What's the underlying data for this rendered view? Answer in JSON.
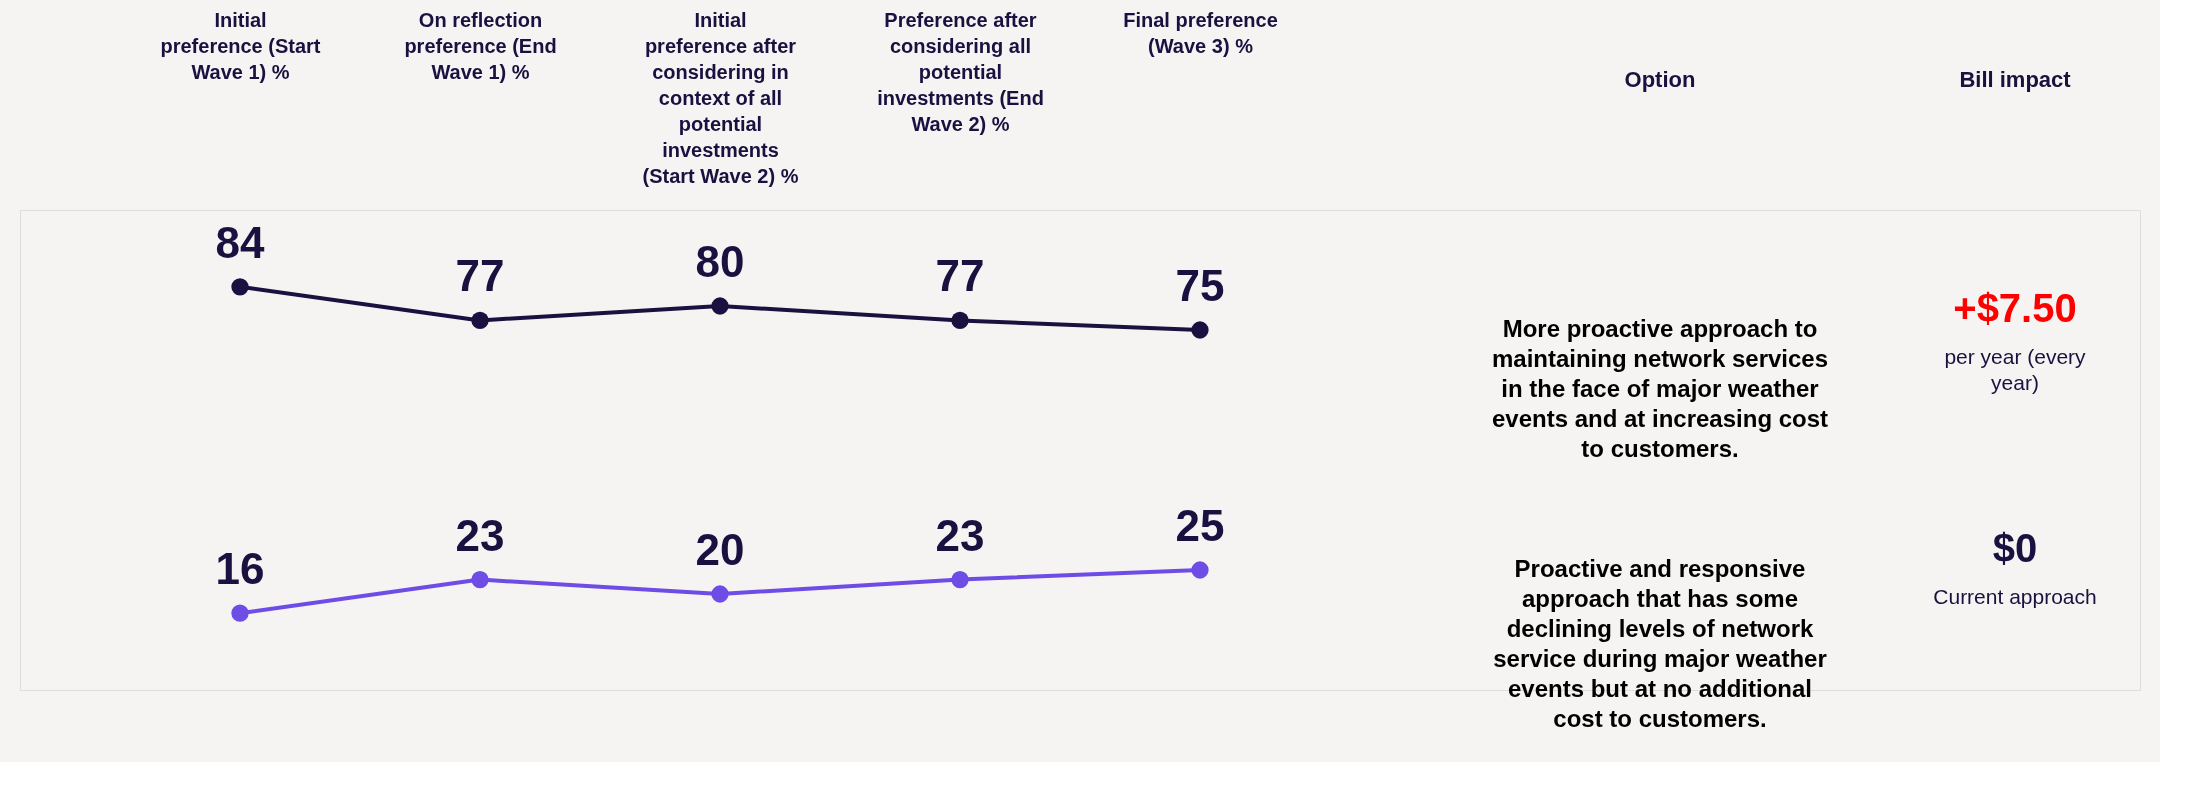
{
  "chart_data": {
    "type": "line",
    "categories": [
      "Initial preference (Start Wave 1) %",
      "On reflection preference (End Wave 1) %",
      "Initial preference after considering in context of all potential investments (Start Wave 2) %",
      "Preference after considering all potential investments (End Wave 2) %",
      "Final preference (Wave 3) %"
    ],
    "series": [
      {
        "color": "#1b1140",
        "values": [
          84,
          77,
          80,
          77,
          75
        ]
      },
      {
        "color": "#6e4ce6",
        "values": [
          16,
          23,
          20,
          23,
          25
        ]
      }
    ],
    "ylim": [
      0,
      100
    ],
    "data_labels": true,
    "marker": "circle",
    "line_style": "solid",
    "grid": false,
    "legend": false,
    "tick_labels": "x",
    "annotations": [
      "Option",
      "Bill impact",
      "More proactive approach to maintaining network services in the face of major weather events and at increasing cost to customers.",
      "+$7.50",
      "per year (every year)",
      "Proactive and responsive approach that has some declining levels of network service during major weather events but at no additional cost to customers.",
      "$0",
      "Current approach"
    ]
  }
}
